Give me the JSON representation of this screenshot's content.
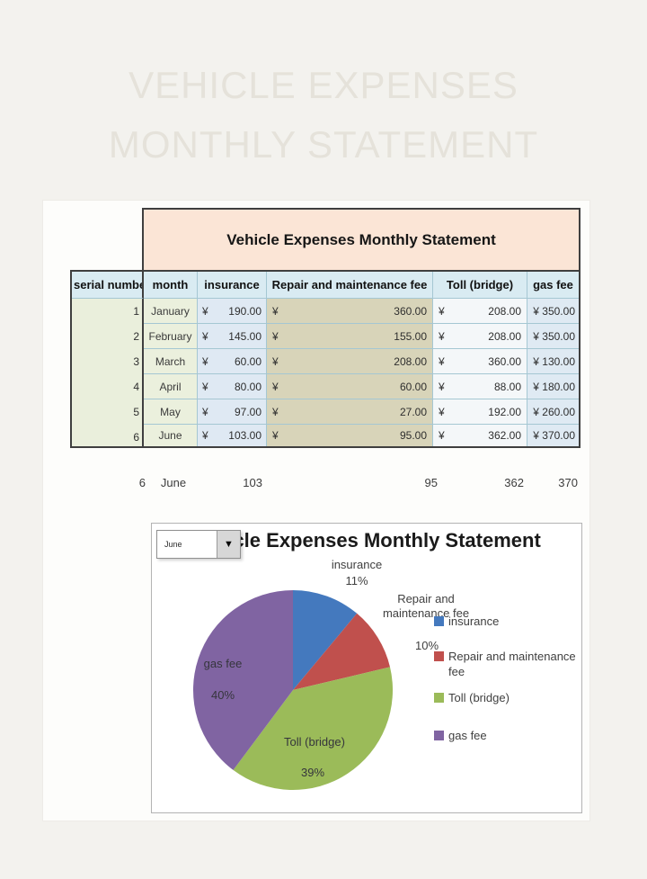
{
  "watermark": {
    "line1": "VEHICLE EXPENSES",
    "line2": "MONTHLY STATEMENT"
  },
  "table": {
    "banner_title": "Vehicle Expenses Monthly Statement",
    "columns": [
      "serial number",
      "month",
      "insurance",
      "Repair and maintenance fee",
      "Toll (bridge)",
      "gas fee"
    ],
    "currency_symbol": "¥",
    "rows": [
      {
        "serial": "1",
        "month": "January",
        "insurance": "190.00",
        "repair": "360.00",
        "toll": "208.00",
        "gas": "350.00"
      },
      {
        "serial": "2",
        "month": "February",
        "insurance": "145.00",
        "repair": "155.00",
        "toll": "208.00",
        "gas": "350.00"
      },
      {
        "serial": "3",
        "month": "March",
        "insurance": "60.00",
        "repair": "208.00",
        "toll": "360.00",
        "gas": "130.00"
      },
      {
        "serial": "4",
        "month": "April",
        "insurance": "80.00",
        "repair": "60.00",
        "toll": "88.00",
        "gas": "180.00"
      },
      {
        "serial": "5",
        "month": "May",
        "insurance": "97.00",
        "repair": "27.00",
        "toll": "192.00",
        "gas": "260.00"
      },
      {
        "serial": "6",
        "month": "June",
        "insurance": "103.00",
        "repair": "95.00",
        "toll": "362.00",
        "gas": "370.00"
      }
    ]
  },
  "summary_row": {
    "serial": "6",
    "month": "June",
    "insurance": "103",
    "repair": "95",
    "toll": "362",
    "gas": "370"
  },
  "chart": {
    "title": "Vehicle Expenses Monthly Statement",
    "dropdown_value": "June"
  },
  "chart_data": {
    "type": "pie",
    "title": "Vehicle Expenses Monthly Statement",
    "selected_month": "June",
    "labels": [
      "insurance",
      "Repair and maintenance fee",
      "Toll (bridge)",
      "gas fee"
    ],
    "values": [
      103,
      95,
      362,
      370
    ],
    "percentages": [
      11,
      10,
      39,
      40
    ],
    "pct_display": [
      "11%",
      "10%",
      "39%",
      "40%"
    ],
    "colors": [
      "#4479be",
      "#c0504d",
      "#9bbb59",
      "#8064a2"
    ],
    "legend_position": "right"
  }
}
